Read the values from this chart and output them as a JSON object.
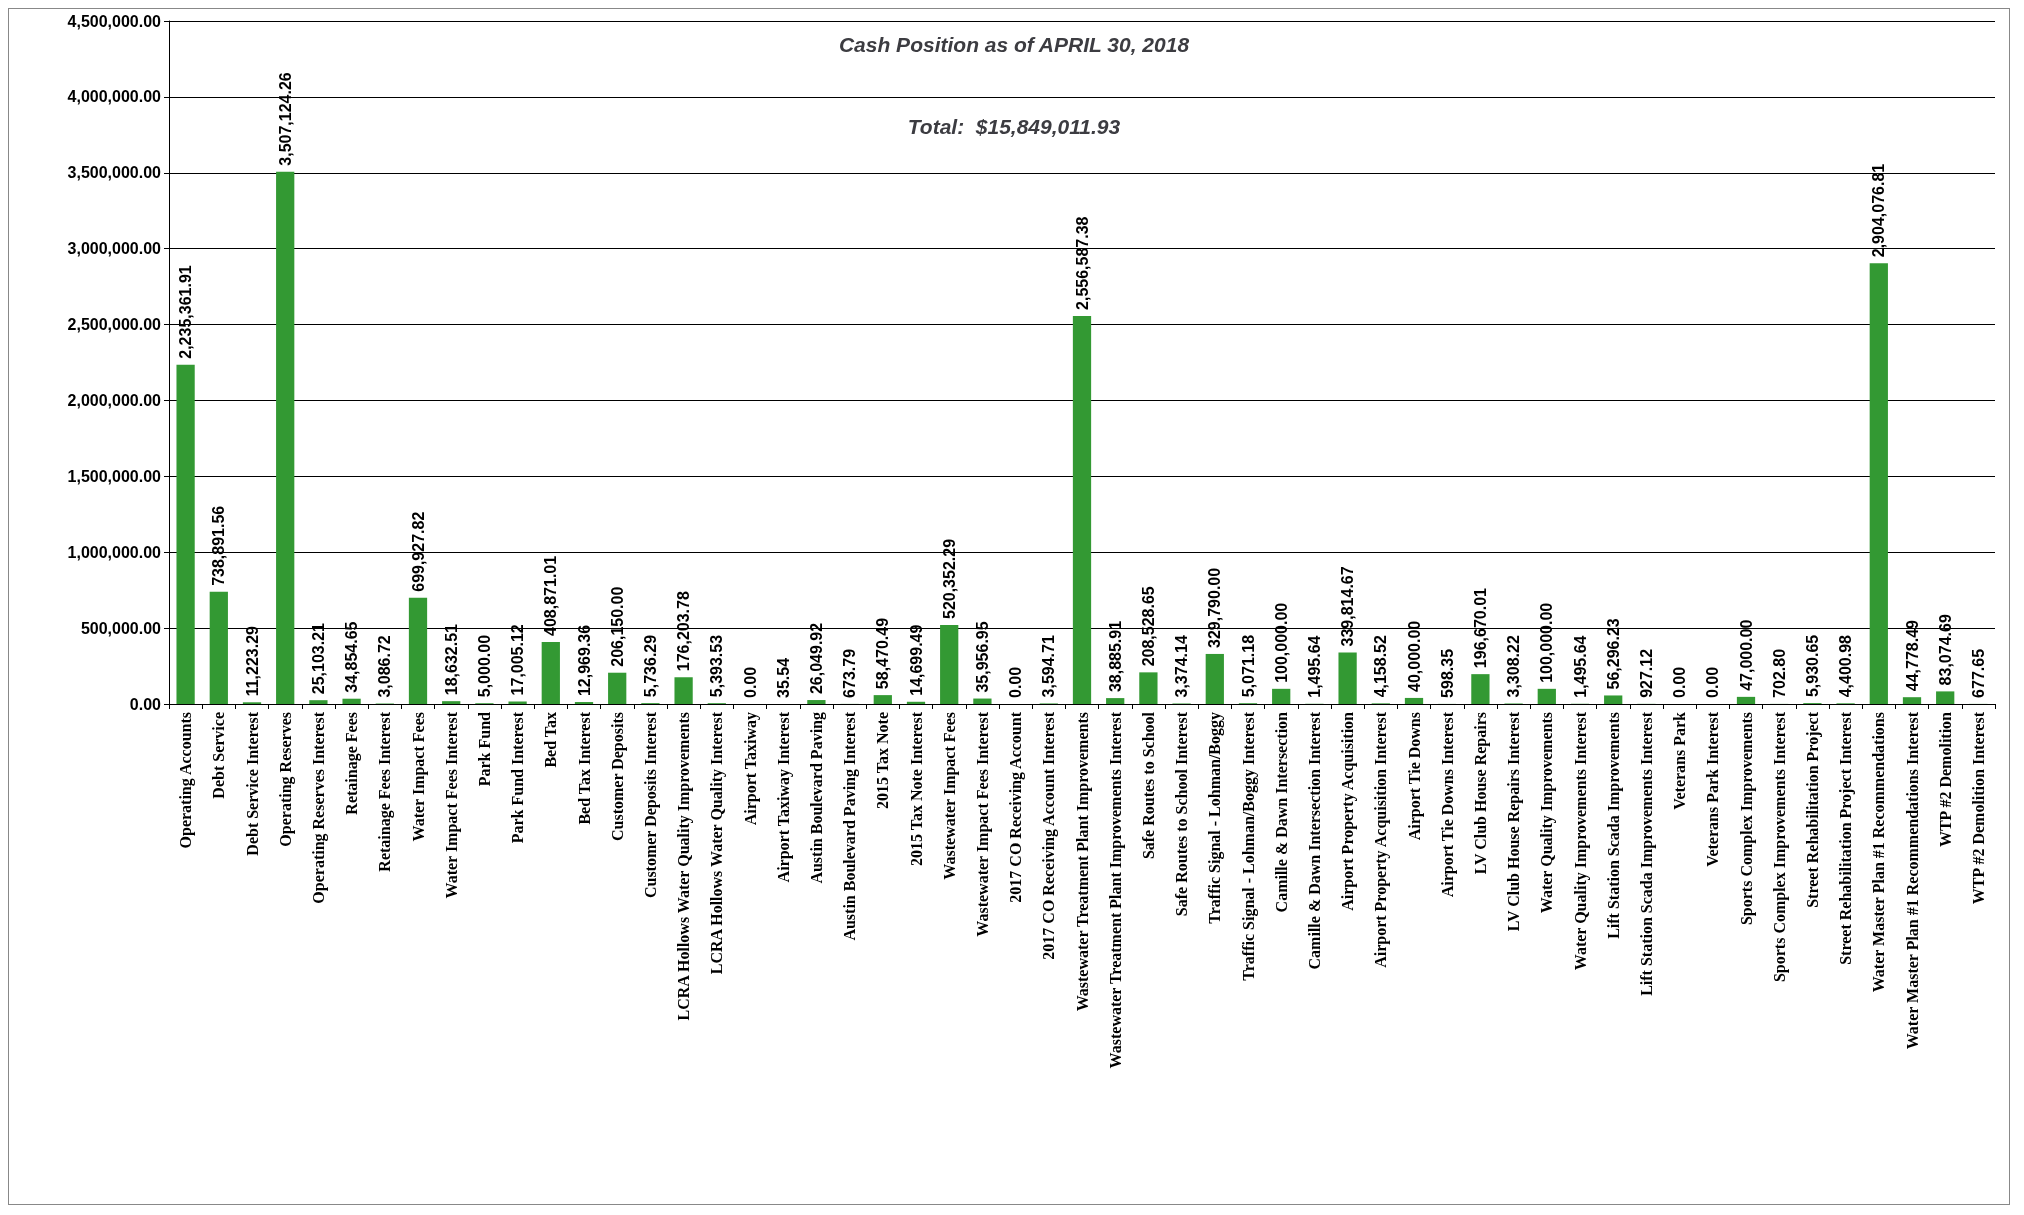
{
  "chart_data": {
    "type": "bar",
    "title": "Cash Position as of APRIL 30, 2018",
    "annotations": [
      "Total:  $15,849,011.93"
    ],
    "categories": [
      "Operating Accounts",
      "Debt Service",
      "Debt Service Interest",
      "Operating Reserves",
      "Operating Reserves Interest",
      "Retainage Fees",
      "Retainage Fees Interest",
      "Water Impact Fees",
      "Water Impact Fees Interest",
      "Park Fund",
      "Park Fund Interest",
      "Bed Tax",
      "Bed Tax Interest",
      "Customer Deposits",
      "Customer Deposits Interest",
      "LCRA Hollows Water Quality Improvements",
      "LCRA Hollows Water Quality Interest",
      "Airport Taxiway",
      "Airport Taxiway Interest",
      "Austin Boulevard Paving",
      "Austin Boulevard Paving Interest",
      "2015 Tax Note",
      "2015 Tax Note Interest",
      "Wastewater Impact Fees",
      "Wastewater Impact Fees Interest",
      "2017 CO Receiving Account",
      "2017 CO Receiving Account Interest",
      "Wastewater Treatment Plant Improvements",
      "Wastewater Treatment Plant Improvements Interest",
      "Safe Routes to School",
      "Safe Routes to School Interest",
      "Traffic Signal - Lohman/Boggy",
      "Traffic Signal - Lohman/Boggy Interest",
      "Camille & Dawn Intersection",
      "Camille & Dawn Intersection Interest",
      "Airport Property Acquisition",
      "Airport Property Acquisition Interest",
      "Airport Tie Downs",
      "Airport Tie Downs Interest",
      "LV Club House Repairs",
      "LV Club House Repairs Interest",
      "Water Quality Improvements",
      "Water Quality Improvements Interest",
      "Lift Station Scada Improvements",
      "Lift Station Scada Improvements Interest",
      "Veterans Park",
      "Veterans Park Interest",
      "Sports Complex Improvements",
      "Sports Complex Improvements Interest",
      "Street Rehabilitation Project",
      "Street Rehabilitation Project Interest",
      "Water Master Plan #1 Recommendations",
      "Water Master Plan #1 Recommendations Interest",
      "WTP #2 Demolition",
      "WTP #2 Demolition Interest"
    ],
    "values": [
      2235361.91,
      738891.56,
      11223.29,
      3507124.26,
      25103.21,
      34854.65,
      3086.72,
      699927.82,
      18632.51,
      5000.0,
      17005.12,
      408871.01,
      12969.36,
      206150.0,
      5736.29,
      176203.78,
      5393.53,
      0.0,
      35.54,
      26049.92,
      673.79,
      58470.49,
      14699.49,
      520352.29,
      35956.95,
      0.0,
      3594.71,
      2556587.38,
      38885.91,
      208528.65,
      3374.14,
      329790.0,
      5071.18,
      100000.0,
      1495.64,
      339814.67,
      4158.52,
      40000.0,
      598.35,
      196670.01,
      3308.22,
      100000.0,
      1495.64,
      56296.23,
      927.12,
      0.0,
      0.0,
      47000.0,
      702.8,
      5930.65,
      4400.98,
      2904076.81,
      44778.49,
      83074.69,
      677.65
    ],
    "value_labels": [
      "2,235,361.91",
      "738,891.56",
      "11,223.29",
      "3,507,124.26",
      "25,103.21",
      "34,854.65",
      "3,086.72",
      "699,927.82",
      "18,632.51",
      "5,000.00",
      "17,005.12",
      "408,871.01",
      "12,969.36",
      "206,150.00",
      "5,736.29",
      "176,203.78",
      "5,393.53",
      "0.00",
      "35.54",
      "26,049.92",
      "673.79",
      "58,470.49",
      "14,699.49",
      "520,352.29",
      "35,956.95",
      "0.00",
      "3,594.71",
      "2,556,587.38",
      "38,885.91",
      "208,528.65",
      "3,374.14",
      "329,790.00",
      "5,071.18",
      "100,000.00",
      "1,495.64",
      "339,814.67",
      "4,158.52",
      "40,000.00",
      "598.35",
      "196,670.01",
      "3,308.22",
      "100,000.00",
      "1,495.64",
      "56,296.23",
      "927.12",
      "0.00",
      "0.00",
      "47,000.00",
      "702.80",
      "5,930.65",
      "4,400.98",
      "2,904,076.81",
      "44,778.49",
      "83,074.69",
      "677.65"
    ],
    "color": "#339933",
    "ylim": [
      0,
      4500000
    ],
    "yticks": [
      {
        "value": 0,
        "label": "0.00"
      },
      {
        "value": 500000,
        "label": "500,000.00"
      },
      {
        "value": 1000000,
        "label": "1,000,000.00"
      },
      {
        "value": 1500000,
        "label": "1,500,000.00"
      },
      {
        "value": 2000000,
        "label": "2,000,000.00"
      },
      {
        "value": 2500000,
        "label": "2,500,000.00"
      },
      {
        "value": 3000000,
        "label": "3,000,000.00"
      },
      {
        "value": 3500000,
        "label": "3,500,000.00"
      },
      {
        "value": 4000000,
        "label": "4,000,000.00"
      },
      {
        "value": 4500000,
        "label": "4,500,000.00"
      }
    ],
    "grid": "y"
  }
}
